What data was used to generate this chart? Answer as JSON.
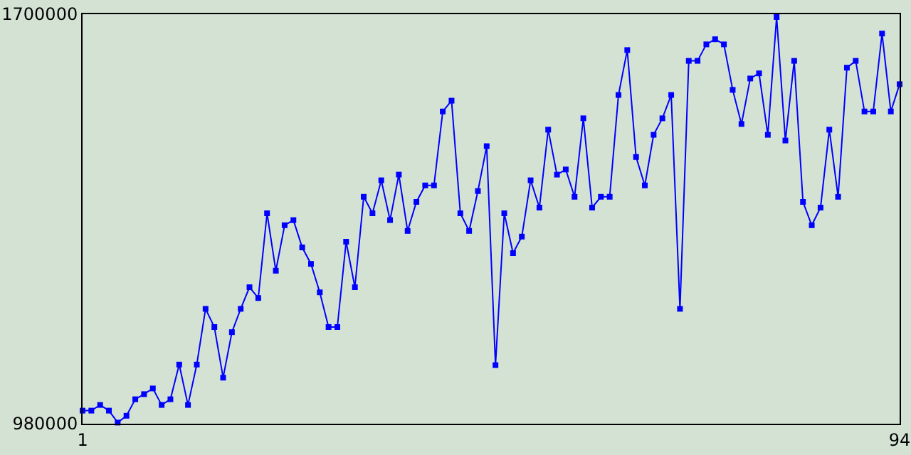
{
  "chart_data": {
    "type": "line",
    "x": [
      1,
      2,
      3,
      4,
      5,
      6,
      7,
      8,
      9,
      10,
      11,
      12,
      13,
      14,
      15,
      16,
      17,
      18,
      19,
      20,
      21,
      22,
      23,
      24,
      25,
      26,
      27,
      28,
      29,
      30,
      31,
      32,
      33,
      34,
      35,
      36,
      37,
      38,
      39,
      40,
      41,
      42,
      43,
      44,
      45,
      46,
      47,
      48,
      49,
      50,
      51,
      52,
      53,
      54,
      55,
      56,
      57,
      58,
      59,
      60,
      61,
      62,
      63,
      64,
      65,
      66,
      67,
      68,
      69,
      70,
      71,
      72,
      73,
      74,
      75,
      76,
      77,
      78,
      79,
      80,
      81,
      82,
      83,
      84,
      85,
      86,
      87,
      88,
      89,
      90,
      91,
      92,
      93,
      94
    ],
    "series": [
      {
        "color": "#0000ff",
        "values": [
          1003000,
          1003000,
          1013000,
          1003000,
          982000,
          994000,
          1023000,
          1032000,
          1042000,
          1013000,
          1023000,
          1084000,
          1013000,
          1084000,
          1182000,
          1150000,
          1061000,
          1141000,
          1182000,
          1220000,
          1201000,
          1350000,
          1249000,
          1329000,
          1338000,
          1290000,
          1261000,
          1211000,
          1150000,
          1150000,
          1300000,
          1220000,
          1379000,
          1350000,
          1408000,
          1338000,
          1418000,
          1319000,
          1370000,
          1399000,
          1399000,
          1529000,
          1548000,
          1350000,
          1319000,
          1389000,
          1468000,
          1083000,
          1350000,
          1280000,
          1309000,
          1408000,
          1360000,
          1497000,
          1418000,
          1427000,
          1379000,
          1517000,
          1360000,
          1379000,
          1379000,
          1558000,
          1637000,
          1449000,
          1399000,
          1488000,
          1517000,
          1558000,
          1182000,
          1618000,
          1618000,
          1647000,
          1656000,
          1647000,
          1567000,
          1507000,
          1587000,
          1596000,
          1488000,
          1695000,
          1478000,
          1618000,
          1370000,
          1329000,
          1360000,
          1497000,
          1379000,
          1606000,
          1618000,
          1529000,
          1529000,
          1666000,
          1529000,
          1577000
        ]
      }
    ],
    "xlim": [
      1,
      94
    ],
    "xticks": [
      1,
      94
    ],
    "ylim": [
      980000,
      1700000
    ],
    "yticks": [
      980000,
      1700000
    ],
    "marker": "square",
    "line_style": "solid"
  }
}
